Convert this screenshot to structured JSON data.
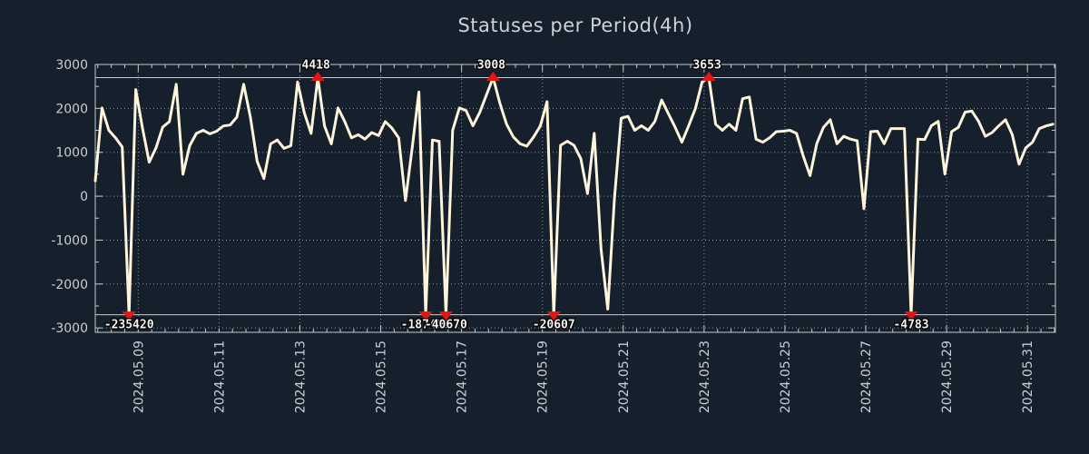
{
  "title": "Statuses per Period(4h)",
  "colors": {
    "background": "#161f2c",
    "line": "#fdf4da",
    "marker": "#e81313",
    "grid": "#8b9198",
    "axis_border": "#c6cacd",
    "threshold_line": "#c9cdd1",
    "tick_text": "#c9ced4",
    "title_text": "#cdd2d7",
    "marker_label_text": "#f4f4f4"
  },
  "chart_data": {
    "type": "line",
    "title": "Statuses per Period(4h)",
    "xlabel": "",
    "ylabel": "",
    "x_tick_labels": [
      "2024.05.09",
      "2024.05.11",
      "2024.05.13",
      "2024.05.15",
      "2024.05.17",
      "2024.05.19",
      "2024.05.21",
      "2024.05.23",
      "2024.05.25",
      "2024.05.27",
      "2024.05.29",
      "2024.05.31"
    ],
    "y_tick_labels": [
      "3000",
      "2000",
      "1000",
      "0",
      "-1000",
      "-2000",
      "-3000"
    ],
    "y_ticks": [
      3000,
      2000,
      1000,
      0,
      -1000,
      -2000,
      -3000
    ],
    "ylim": [
      -3100,
      3000
    ],
    "grid": "dotted",
    "legend": "none",
    "step_hours": 4,
    "clip_upper": 2700,
    "clip_lower": -2700,
    "series": [
      {
        "name": "statuses",
        "values": [
          350,
          2010,
          1500,
          1330,
          1120,
          -235420,
          2430,
          1550,
          775,
          1100,
          1576,
          1700,
          2550,
          500,
          1150,
          1430,
          1500,
          1420,
          1480,
          1600,
          1620,
          1800,
          2550,
          1800,
          800,
          400,
          1190,
          1280,
          1090,
          1150,
          2600,
          1900,
          1430,
          4418,
          1600,
          1190,
          2010,
          1700,
          1330,
          1400,
          1300,
          1450,
          1380,
          1700,
          1550,
          1330,
          -100,
          1100,
          2375,
          -187400,
          1280,
          1250,
          -40670,
          1500,
          2010,
          1950,
          1605,
          1900,
          2300,
          3008,
          2120,
          1640,
          1350,
          1195,
          1140,
          1350,
          1600,
          2155,
          -20607,
          1160,
          1250,
          1160,
          855,
          60,
          1430,
          -1200,
          -2570,
          -45,
          1775,
          1820,
          1500,
          1605,
          1500,
          1705,
          2190,
          1880,
          1570,
          1230,
          1600,
          2000,
          2600,
          3653,
          1640,
          1500,
          1640,
          1500,
          2220,
          2260,
          1300,
          1230,
          1330,
          1470,
          1480,
          1500,
          1430,
          915,
          470,
          1195,
          1570,
          1740,
          1195,
          1365,
          1300,
          1260,
          -285,
          1470,
          1480,
          1195,
          1540,
          1540,
          1540,
          -4783,
          1300,
          1290,
          1605,
          1705,
          505,
          1470,
          1570,
          1915,
          1940,
          1705,
          1365,
          1450,
          1605,
          1740,
          1400,
          730,
          1100,
          1230,
          1540,
          1600,
          1640
        ]
      }
    ],
    "annotations": {
      "peaks": [
        {
          "index": 33,
          "value": 4418,
          "label": "4418"
        },
        {
          "index": 59,
          "value": 3008,
          "label": "3008"
        },
        {
          "index": 91,
          "value": 3653,
          "label": "3653"
        }
      ],
      "dips": [
        {
          "index": 5,
          "value": -235420,
          "label": "-235420"
        },
        {
          "index": 49,
          "value": -187400,
          "label": "-187400"
        },
        {
          "index": 52,
          "value": -40670,
          "label": "-40670"
        },
        {
          "index": 68,
          "value": -20607,
          "label": "-20607"
        },
        {
          "index": 121,
          "value": -4783,
          "label": "-4783"
        }
      ]
    }
  }
}
